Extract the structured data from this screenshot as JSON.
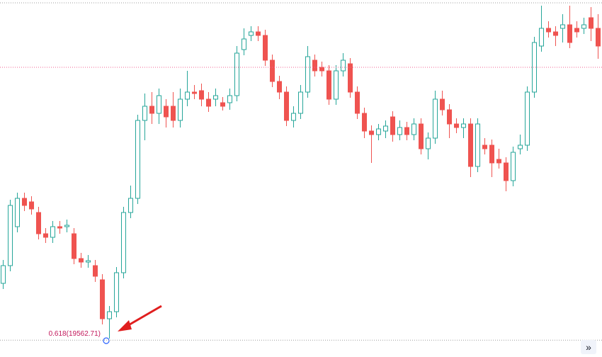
{
  "chart_data": {
    "type": "candlestick",
    "up_color": "#26a69a",
    "down_color": "#ef5350",
    "ylim": [
      19539,
      20043
    ],
    "price_lines": [
      {
        "value": 20039,
        "color": "#9e9e9e"
      },
      {
        "value": 19948,
        "color": "#f06292"
      },
      {
        "value": 19562.71,
        "color": "#9e9e9e",
        "label": "0.618(19562.71)",
        "label_color": "#c2185b"
      }
    ],
    "ohlc": [
      [
        19643,
        19676,
        19635,
        19668
      ],
      [
        19668,
        19761,
        19660,
        19753
      ],
      [
        19723,
        19771,
        19715,
        19763
      ],
      [
        19763,
        19771,
        19745,
        19753
      ],
      [
        19758,
        19766,
        19740,
        19748
      ],
      [
        19743,
        19751,
        19705,
        19713
      ],
      [
        19713,
        19721,
        19700,
        19708
      ],
      [
        19708,
        19731,
        19700,
        19723
      ],
      [
        19723,
        19731,
        19713,
        19721
      ],
      [
        19723,
        19733,
        19715,
        19725
      ],
      [
        19713,
        19721,
        19670,
        19678
      ],
      [
        19678,
        19686,
        19665,
        19673
      ],
      [
        19673,
        19683,
        19665,
        19675
      ],
      [
        19668,
        19676,
        19645,
        19653
      ],
      [
        19648,
        19656,
        19585,
        19593
      ],
      [
        19593,
        19611,
        19565,
        19603
      ],
      [
        19603,
        19666,
        19595,
        19658
      ],
      [
        19658,
        19751,
        19650,
        19743
      ],
      [
        19743,
        19781,
        19735,
        19763
      ],
      [
        19763,
        19881,
        19755,
        19873
      ],
      [
        19873,
        19911,
        19845,
        19893
      ],
      [
        19893,
        19913,
        19868,
        19883
      ],
      [
        19883,
        19918,
        19868,
        19908
      ],
      [
        19893,
        19903,
        19863,
        19878
      ],
      [
        19893,
        19913,
        19863,
        19873
      ],
      [
        19873,
        19918,
        19863,
        19903
      ],
      [
        19903,
        19943,
        19893,
        19913
      ],
      [
        19913,
        19923,
        19903,
        19911
      ],
      [
        19915,
        19925,
        19893,
        19903
      ],
      [
        19903,
        19913,
        19885,
        19893
      ],
      [
        19903,
        19918,
        19893,
        19908
      ],
      [
        19898,
        19906,
        19887,
        19893
      ],
      [
        19898,
        19918,
        19888,
        19908
      ],
      [
        19908,
        19978,
        19900,
        19968
      ],
      [
        19973,
        20003,
        19965,
        19988
      ],
      [
        19993,
        20006,
        19985,
        19998
      ],
      [
        19998,
        20006,
        19985,
        19993
      ],
      [
        19993,
        20001,
        19950,
        19958
      ],
      [
        19958,
        19966,
        19920,
        19928
      ],
      [
        19928,
        19936,
        19903,
        19913
      ],
      [
        19913,
        19921,
        19865,
        19873
      ],
      [
        19873,
        19893,
        19863,
        19883
      ],
      [
        19883,
        19923,
        19875,
        19913
      ],
      [
        19913,
        19978,
        19905,
        19963
      ],
      [
        19958,
        19966,
        19935,
        19943
      ],
      [
        19948,
        19956,
        19935,
        19943
      ],
      [
        19943,
        19951,
        19895,
        19903
      ],
      [
        19903,
        19951,
        19895,
        19943
      ],
      [
        19943,
        19968,
        19935,
        19958
      ],
      [
        19953,
        19961,
        19905,
        19913
      ],
      [
        19913,
        19921,
        19875,
        19883
      ],
      [
        19883,
        19891,
        19848,
        19858
      ],
      [
        19858,
        19866,
        19813,
        19853
      ],
      [
        19853,
        19868,
        19845,
        19861
      ],
      [
        19858,
        19873,
        19848,
        19865
      ],
      [
        19878,
        19886,
        19843,
        19853
      ],
      [
        19853,
        19873,
        19845,
        19863
      ],
      [
        19863,
        19871,
        19845,
        19853
      ],
      [
        19853,
        19876,
        19845,
        19868
      ],
      [
        19868,
        19876,
        19825,
        19833
      ],
      [
        19833,
        19856,
        19818,
        19848
      ],
      [
        19848,
        19915,
        19840,
        19903
      ],
      [
        19903,
        19915,
        19880,
        19888
      ],
      [
        19888,
        19896,
        19848,
        19868
      ],
      [
        19868,
        19876,
        19855,
        19863
      ],
      [
        19863,
        19876,
        19848,
        19868
      ],
      [
        19868,
        19876,
        19793,
        19808
      ],
      [
        19808,
        19876,
        19800,
        19868
      ],
      [
        19838,
        19848,
        19825,
        19833
      ],
      [
        19838,
        19846,
        19793,
        19813
      ],
      [
        19818,
        19833,
        19805,
        19813
      ],
      [
        19813,
        19821,
        19773,
        19788
      ],
      [
        19788,
        19836,
        19780,
        19828
      ],
      [
        19833,
        19853,
        19825,
        19838
      ],
      [
        19838,
        19921,
        19830,
        19913
      ],
      [
        19913,
        19991,
        19905,
        19983
      ],
      [
        19978,
        20035,
        19970,
        20003
      ],
      [
        20003,
        20013,
        19990,
        19998
      ],
      [
        19998,
        20006,
        19978,
        19993
      ],
      [
        20003,
        20023,
        19983,
        20008
      ],
      [
        20008,
        20035,
        19975,
        19983
      ],
      [
        20003,
        20013,
        19990,
        19998
      ],
      [
        20003,
        20018,
        19995,
        20008
      ],
      [
        20018,
        20033,
        19985,
        20003
      ],
      [
        20003,
        20023,
        19960,
        19978
      ]
    ]
  },
  "scroll_button": "»"
}
